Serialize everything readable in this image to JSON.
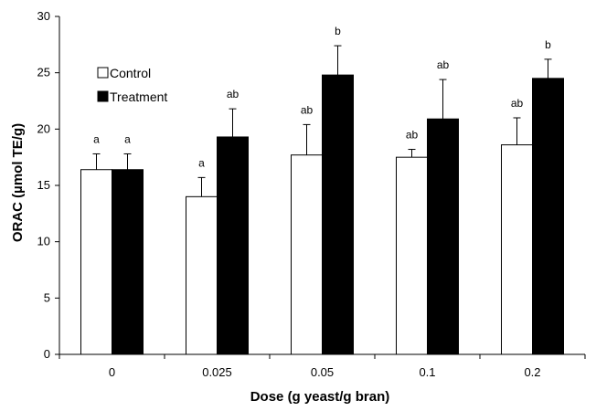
{
  "chart_data": {
    "type": "bar",
    "xlabel": "Dose (g yeast/g bran)",
    "ylabel": "ORAC (µmol TE/g)",
    "categories": [
      "0",
      "0.025",
      "0.05",
      "0.1",
      "0.2"
    ],
    "ylim": [
      0,
      30
    ],
    "yticks": [
      "0",
      "5",
      "10",
      "15",
      "20",
      "25",
      "30"
    ],
    "grid": false,
    "legend_position": "top-left",
    "series": [
      {
        "name": "Control",
        "color": "#ffffff",
        "values": [
          16.4,
          14.0,
          17.7,
          17.5,
          18.6
        ],
        "errors": [
          1.4,
          1.7,
          2.7,
          0.7,
          2.4
        ],
        "labels": [
          "a",
          "a",
          "ab",
          "ab",
          "ab"
        ]
      },
      {
        "name": "Treatment",
        "color": "#000000",
        "values": [
          16.4,
          19.3,
          24.8,
          20.9,
          24.5
        ],
        "errors": [
          1.4,
          2.5,
          2.6,
          3.5,
          1.7
        ],
        "labels": [
          "a",
          "ab",
          "b",
          "ab",
          "b"
        ]
      }
    ]
  }
}
